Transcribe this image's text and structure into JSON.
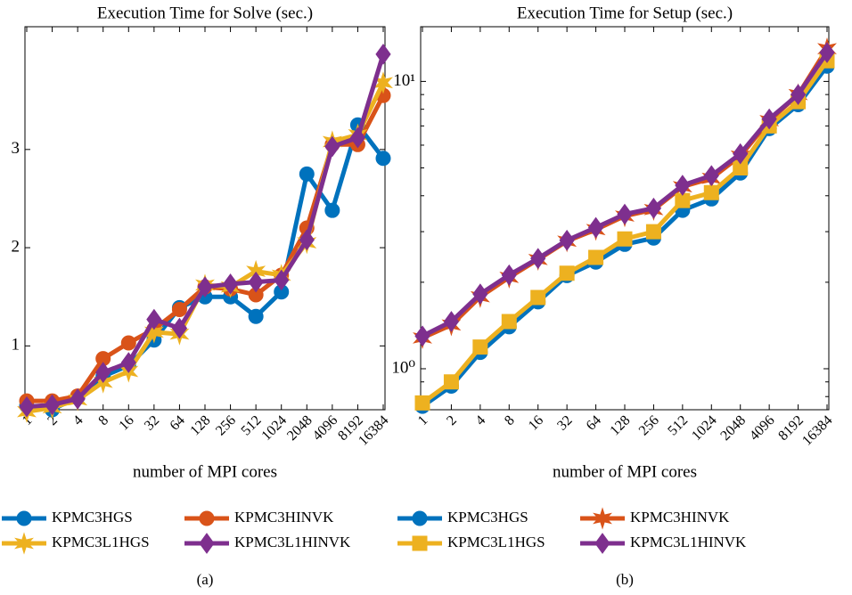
{
  "chart_data": [
    {
      "type": "line",
      "title": "Execution Time for Solve (sec.)",
      "xlabel": "number of MPI cores",
      "caption": "(a)",
      "categories": [
        "1",
        "2",
        "4",
        "8",
        "16",
        "32",
        "64",
        "128",
        "256",
        "512",
        "1024",
        "2048",
        "4096",
        "8192",
        "16384"
      ],
      "ylim": [
        0.35,
        4.25
      ],
      "yticks": [
        1,
        2,
        3
      ],
      "log": false,
      "series": [
        {
          "name": "KPMC3HGS",
          "color": "#0072bd",
          "marker": "circle",
          "values": [
            0.39,
            0.35,
            0.48,
            0.69,
            0.8,
            1.06,
            1.39,
            1.5,
            1.5,
            1.3,
            1.55,
            2.75,
            2.38,
            3.25,
            2.91
          ]
        },
        {
          "name": "KPMC3HINVK",
          "color": "#d95319",
          "marker": "circle",
          "values": [
            0.44,
            0.44,
            0.49,
            0.87,
            1.03,
            1.17,
            1.37,
            1.6,
            1.58,
            1.52,
            1.72,
            2.2,
            3.05,
            3.05,
            3.55
          ]
        },
        {
          "name": "KPMC3L1HGS",
          "color": "#edb120",
          "marker": "star",
          "values": [
            0.33,
            0.37,
            0.45,
            0.63,
            0.74,
            1.14,
            1.12,
            1.62,
            1.6,
            1.76,
            1.72,
            2.05,
            3.08,
            3.15,
            3.68
          ]
        },
        {
          "name": "KPMC3L1HINVK",
          "color": "#7e2f8e",
          "marker": "diamond",
          "values": [
            0.38,
            0.4,
            0.46,
            0.73,
            0.83,
            1.27,
            1.18,
            1.6,
            1.63,
            1.65,
            1.67,
            2.08,
            3.03,
            3.12,
            3.97
          ]
        }
      ]
    },
    {
      "type": "line",
      "title": "Execution Time for Setup (sec.)",
      "xlabel": "number of MPI cores",
      "caption": "(b)",
      "categories": [
        "1",
        "2",
        "4",
        "8",
        "16",
        "32",
        "64",
        "128",
        "256",
        "512",
        "1024",
        "2048",
        "4096",
        "8192",
        "16384"
      ],
      "ylim": [
        0.72,
        15.5
      ],
      "yticks": [
        {
          "value": 1,
          "label": "10⁰"
        },
        {
          "value": 10,
          "label": "10¹"
        }
      ],
      "yminorticks": [
        0.8,
        0.9,
        2,
        3,
        4,
        5,
        6,
        7,
        8,
        9
      ],
      "log": true,
      "series": [
        {
          "name": "KPMC3HGS",
          "color": "#0072bd",
          "marker": "circle",
          "values": [
            0.74,
            0.87,
            1.14,
            1.4,
            1.71,
            2.11,
            2.35,
            2.71,
            2.85,
            3.56,
            3.9,
            4.8,
            6.85,
            8.3,
            11.3
          ]
        },
        {
          "name": "KPMC3HINVK",
          "color": "#d95319",
          "marker": "star",
          "values": [
            1.28,
            1.42,
            1.78,
            2.08,
            2.4,
            2.78,
            3.05,
            3.4,
            3.58,
            4.3,
            4.6,
            5.5,
            7.3,
            9.0,
            13.0
          ]
        },
        {
          "name": "KPMC3L1HGS",
          "color": "#edb120",
          "marker": "square",
          "values": [
            0.76,
            0.9,
            1.19,
            1.46,
            1.77,
            2.15,
            2.44,
            2.83,
            3.0,
            3.85,
            4.1,
            5.0,
            7.0,
            8.5,
            11.8
          ]
        },
        {
          "name": "KPMC3L1HINVK",
          "color": "#7e2f8e",
          "marker": "diamond",
          "values": [
            1.3,
            1.46,
            1.82,
            2.12,
            2.42,
            2.8,
            3.1,
            3.45,
            3.62,
            4.35,
            4.7,
            5.6,
            7.4,
            9.0,
            12.6
          ]
        }
      ]
    }
  ]
}
